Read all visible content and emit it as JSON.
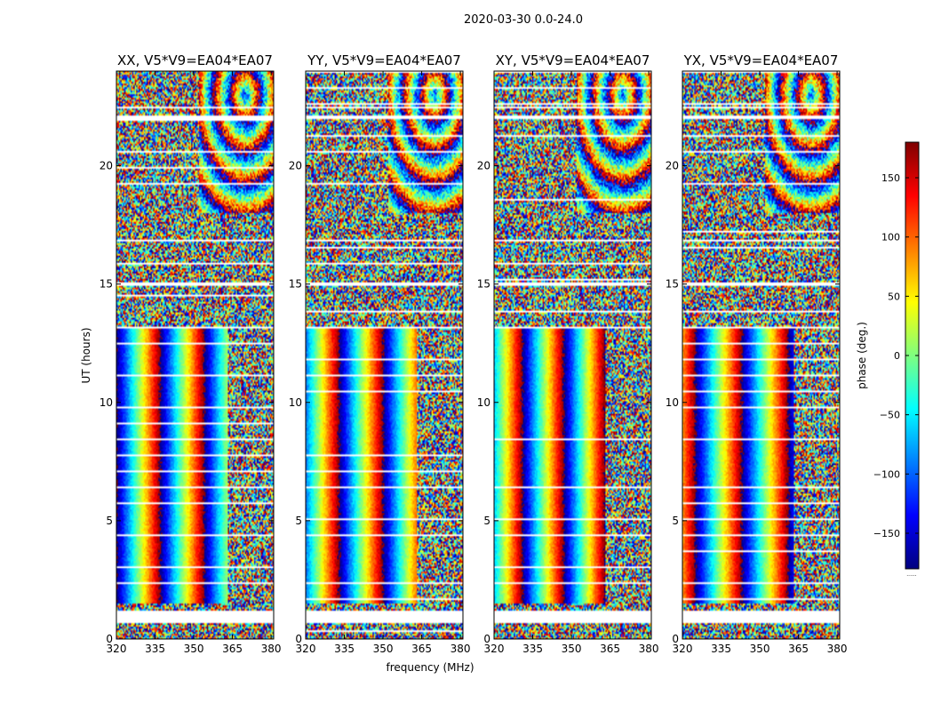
{
  "chart_data": {
    "type": "heatmap",
    "suptitle": "2020-03-30 0.0-24.0",
    "xlabel": "frequency (MHz)",
    "ylabel": "UT (hours)",
    "xlim": [
      320,
      381
    ],
    "ylim": [
      0,
      24
    ],
    "xticks": [
      320,
      335,
      350,
      365,
      380
    ],
    "yticks": [
      0,
      5,
      10,
      15,
      20
    ],
    "panels": [
      {
        "title": "XX, V5*V9=EA04*EA07",
        "phase_center_mhz": 337,
        "phase_wrap_mhz": 17
      },
      {
        "title": "YY, V5*V9=EA04*EA07",
        "phase_center_mhz": 333,
        "phase_wrap_mhz": 17
      },
      {
        "title": "XY, V5*V9=EA04*EA07",
        "phase_center_mhz": 347,
        "phase_wrap_mhz": 16
      },
      {
        "title": "YX, V5*V9=EA04*EA07",
        "phase_center_mhz": 325,
        "phase_wrap_mhz": 18
      }
    ],
    "structure": {
      "coherent_hours": [
        1.5,
        13.2
      ],
      "coherent_freq_max_mhz": 363,
      "blank_hours": [
        [
          0.7,
          1.2
        ],
        [
          14.9,
          15.1
        ],
        [
          16.8,
          16.9
        ],
        [
          22.0,
          22.1
        ],
        [
          22.4,
          22.5
        ]
      ]
    },
    "colorbar": {
      "label": "phase (deg.)",
      "range": [
        -180,
        180
      ],
      "ticks": [
        -150,
        -100,
        -50,
        0,
        50,
        100,
        150
      ],
      "tick_labels": [
        "−150",
        "−100",
        "−50",
        "0",
        "50",
        "100",
        "150"
      ],
      "colormap": "jet",
      "stops": [
        "#00007f",
        "#0000ff",
        "#007fff",
        "#00ffff",
        "#7fff7f",
        "#ffff00",
        "#ff7f00",
        "#ff0000",
        "#7f0000"
      ],
      "footer": "......"
    }
  }
}
